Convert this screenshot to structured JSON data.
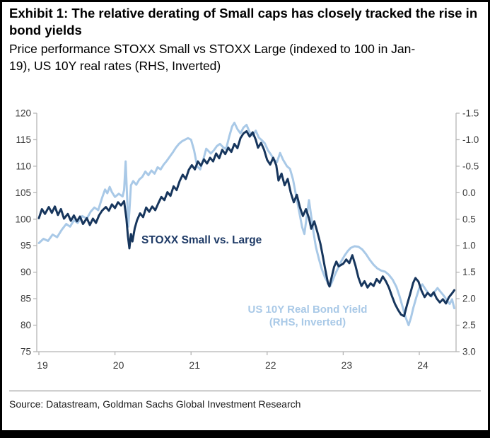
{
  "exhibit": {
    "title": "Exhibit 1: The relative derating of Small caps has closely tracked the rise in bond yields",
    "subtitle": "Price performance STOXX Small vs STOXX Large (indexed to 100 in Jan-19), US 10Y real rates (RHS, Inverted)",
    "source": "Source: Datastream, Goldman Sachs Global Investment Research"
  },
  "chart_data": {
    "type": "line",
    "title": "Exhibit 1: The relative derating of Small caps has closely tracked the rise in bond yields",
    "subtitle": "Price performance STOXX Small vs STOXX Large (indexed to 100 in Jan-19), US 10Y real rates (RHS, Inverted)",
    "grid": false,
    "legend_position": "in-plot-annotations",
    "axis_color": "#b5b5b5",
    "tick_label_color": "#3a3a3a",
    "x_axis": {
      "ticks": [
        19,
        20,
        21,
        22,
        23,
        24
      ],
      "labels": [
        "19",
        "20",
        "21",
        "22",
        "23",
        "24"
      ],
      "range": [
        19,
        24.55
      ]
    },
    "left_axis": {
      "range": [
        75,
        120
      ],
      "ticks": [
        120,
        115,
        110,
        105,
        100,
        95,
        90,
        85,
        80,
        75
      ]
    },
    "right_axis": {
      "range": [
        -1.5,
        3.0
      ],
      "ticks": [
        -1.5,
        -1.0,
        -0.5,
        0.0,
        0.5,
        1.0,
        1.5,
        2.0,
        2.5,
        3.0
      ],
      "inverted": true
    },
    "annotations": [
      {
        "id": "stoxx-label",
        "text": "STOXX Small vs. Large",
        "color": "#1e3a66"
      },
      {
        "id": "yield-label",
        "line1": "US 10Y Real Bond Yield",
        "line2": "(RHS, Inverted)",
        "color": "#a9c9e7"
      }
    ],
    "series": [
      {
        "name": "STOXX Small vs. Large",
        "axis": "left",
        "color": "#17365d",
        "width": 3,
        "points": [
          [
            19.0,
            100.2
          ],
          [
            19.04,
            101.9
          ],
          [
            19.08,
            101.0
          ],
          [
            19.13,
            102.3
          ],
          [
            19.17,
            101.2
          ],
          [
            19.21,
            102.4
          ],
          [
            19.25,
            100.8
          ],
          [
            19.29,
            101.9
          ],
          [
            19.33,
            100.1
          ],
          [
            19.38,
            101.0
          ],
          [
            19.42,
            99.7
          ],
          [
            19.46,
            100.7
          ],
          [
            19.5,
            99.6
          ],
          [
            19.54,
            100.5
          ],
          [
            19.58,
            99.1
          ],
          [
            19.63,
            100.2
          ],
          [
            19.67,
            98.9
          ],
          [
            19.71,
            100.1
          ],
          [
            19.75,
            99.3
          ],
          [
            19.79,
            100.7
          ],
          [
            19.83,
            101.6
          ],
          [
            19.88,
            102.3
          ],
          [
            19.92,
            101.6
          ],
          [
            19.96,
            102.8
          ],
          [
            20.0,
            102.1
          ],
          [
            20.04,
            103.2
          ],
          [
            20.08,
            102.6
          ],
          [
            20.12,
            103.4
          ],
          [
            20.15,
            100.2
          ],
          [
            20.17,
            96.8
          ],
          [
            20.19,
            94.5
          ],
          [
            20.21,
            97.2
          ],
          [
            20.23,
            95.8
          ],
          [
            20.26,
            98.3
          ],
          [
            20.29,
            99.8
          ],
          [
            20.33,
            101.1
          ],
          [
            20.37,
            100.4
          ],
          [
            20.41,
            102.2
          ],
          [
            20.45,
            101.4
          ],
          [
            20.49,
            102.4
          ],
          [
            20.53,
            101.7
          ],
          [
            20.57,
            103.0
          ],
          [
            20.61,
            104.2
          ],
          [
            20.65,
            103.6
          ],
          [
            20.69,
            105.1
          ],
          [
            20.73,
            104.4
          ],
          [
            20.77,
            106.2
          ],
          [
            20.81,
            105.5
          ],
          [
            20.85,
            107.2
          ],
          [
            20.89,
            108.4
          ],
          [
            20.93,
            107.6
          ],
          [
            20.97,
            109.3
          ],
          [
            21.01,
            110.2
          ],
          [
            21.05,
            109.4
          ],
          [
            21.09,
            110.9
          ],
          [
            21.13,
            110.1
          ],
          [
            21.17,
            111.3
          ],
          [
            21.21,
            110.5
          ],
          [
            21.25,
            111.6
          ],
          [
            21.29,
            110.9
          ],
          [
            21.33,
            112.4
          ],
          [
            21.37,
            111.5
          ],
          [
            21.41,
            113.1
          ],
          [
            21.45,
            112.3
          ],
          [
            21.49,
            113.5
          ],
          [
            21.53,
            112.7
          ],
          [
            21.57,
            114.2
          ],
          [
            21.61,
            113.4
          ],
          [
            21.65,
            115.3
          ],
          [
            21.69,
            116.2
          ],
          [
            21.73,
            116.6
          ],
          [
            21.77,
            115.6
          ],
          [
            21.81,
            116.4
          ],
          [
            21.85,
            115.0
          ],
          [
            21.88,
            113.5
          ],
          [
            21.92,
            114.4
          ],
          [
            21.96,
            113.1
          ],
          [
            22.0,
            111.2
          ],
          [
            22.04,
            110.3
          ],
          [
            22.08,
            111.6
          ],
          [
            22.12,
            110.2
          ],
          [
            22.15,
            107.3
          ],
          [
            22.19,
            108.6
          ],
          [
            22.23,
            106.4
          ],
          [
            22.27,
            107.6
          ],
          [
            22.31,
            105.0
          ],
          [
            22.35,
            103.2
          ],
          [
            22.39,
            104.6
          ],
          [
            22.43,
            102.3
          ],
          [
            22.47,
            100.6
          ],
          [
            22.51,
            101.9
          ],
          [
            22.55,
            100.2
          ],
          [
            22.58,
            98.2
          ],
          [
            22.62,
            99.6
          ],
          [
            22.66,
            97.6
          ],
          [
            22.7,
            95.4
          ],
          [
            22.73,
            93.2
          ],
          [
            22.76,
            90.8
          ],
          [
            22.8,
            87.9
          ],
          [
            22.82,
            87.3
          ],
          [
            22.85,
            89.2
          ],
          [
            22.88,
            91.0
          ],
          [
            22.91,
            92.0
          ],
          [
            22.94,
            91.1
          ],
          [
            23.0,
            91.6
          ],
          [
            23.04,
            92.4
          ],
          [
            23.08,
            91.7
          ],
          [
            23.12,
            93.2
          ],
          [
            23.16,
            91.3
          ],
          [
            23.2,
            89.0
          ],
          [
            23.24,
            87.4
          ],
          [
            23.28,
            88.3
          ],
          [
            23.32,
            87.1
          ],
          [
            23.36,
            87.9
          ],
          [
            23.4,
            87.4
          ],
          [
            23.44,
            88.7
          ],
          [
            23.48,
            88.0
          ],
          [
            23.52,
            89.2
          ],
          [
            23.56,
            88.3
          ],
          [
            23.6,
            87.1
          ],
          [
            23.64,
            85.5
          ],
          [
            23.68,
            84.0
          ],
          [
            23.72,
            82.9
          ],
          [
            23.76,
            82.0
          ],
          [
            23.8,
            81.7
          ],
          [
            23.84,
            83.9
          ],
          [
            23.88,
            85.9
          ],
          [
            23.92,
            88.0
          ],
          [
            23.95,
            88.9
          ],
          [
            23.99,
            88.2
          ],
          [
            24.03,
            86.5
          ],
          [
            24.07,
            85.3
          ],
          [
            24.11,
            86.1
          ],
          [
            24.15,
            85.5
          ],
          [
            24.19,
            86.2
          ],
          [
            24.23,
            85.0
          ],
          [
            24.27,
            84.3
          ],
          [
            24.31,
            84.9
          ],
          [
            24.35,
            84.1
          ],
          [
            24.39,
            85.3
          ],
          [
            24.43,
            86.0
          ],
          [
            24.46,
            86.6
          ]
        ]
      },
      {
        "name": "US 10Y Real Bond Yield (RHS, Inverted)",
        "axis": "right",
        "color": "#a9c9e7",
        "width": 3,
        "points": [
          [
            19.0,
            0.95
          ],
          [
            19.06,
            0.87
          ],
          [
            19.12,
            0.91
          ],
          [
            19.18,
            0.79
          ],
          [
            19.24,
            0.84
          ],
          [
            19.3,
            0.7
          ],
          [
            19.36,
            0.59
          ],
          [
            19.41,
            0.64
          ],
          [
            19.46,
            0.52
          ],
          [
            19.51,
            0.57
          ],
          [
            19.57,
            0.44
          ],
          [
            19.63,
            0.49
          ],
          [
            19.68,
            0.36
          ],
          [
            19.73,
            0.28
          ],
          [
            19.78,
            0.33
          ],
          [
            19.83,
            0.1
          ],
          [
            19.87,
            -0.06
          ],
          [
            19.9,
            0.01
          ],
          [
            19.93,
            -0.11
          ],
          [
            19.96,
            -0.01
          ],
          [
            20.0,
            0.08
          ],
          [
            20.05,
            0.02
          ],
          [
            20.1,
            0.07
          ],
          [
            20.12,
            -0.05
          ],
          [
            20.14,
            -0.59
          ],
          [
            20.16,
            0.1
          ],
          [
            20.175,
            0.64
          ],
          [
            20.19,
            0.35
          ],
          [
            20.21,
            -0.14
          ],
          [
            20.24,
            -0.22
          ],
          [
            20.28,
            -0.15
          ],
          [
            20.32,
            -0.25
          ],
          [
            20.36,
            -0.3
          ],
          [
            20.4,
            -0.4
          ],
          [
            20.44,
            -0.33
          ],
          [
            20.48,
            -0.42
          ],
          [
            20.52,
            -0.36
          ],
          [
            20.56,
            -0.48
          ],
          [
            20.6,
            -0.44
          ],
          [
            20.64,
            -0.53
          ],
          [
            20.68,
            -0.6
          ],
          [
            20.72,
            -0.68
          ],
          [
            20.76,
            -0.76
          ],
          [
            20.8,
            -0.85
          ],
          [
            20.84,
            -0.92
          ],
          [
            20.88,
            -0.97
          ],
          [
            20.92,
            -1.0
          ],
          [
            20.96,
            -1.03
          ],
          [
            21.0,
            -1.0
          ],
          [
            21.04,
            -0.8
          ],
          [
            21.08,
            -0.5
          ],
          [
            21.12,
            -0.44
          ],
          [
            21.16,
            -0.62
          ],
          [
            21.2,
            -0.83
          ],
          [
            21.26,
            -0.74
          ],
          [
            21.3,
            -0.8
          ],
          [
            21.34,
            -0.88
          ],
          [
            21.38,
            -0.92
          ],
          [
            21.42,
            -0.86
          ],
          [
            21.46,
            -0.82
          ],
          [
            21.5,
            -1.05
          ],
          [
            21.54,
            -1.25
          ],
          [
            21.57,
            -1.32
          ],
          [
            21.61,
            -1.2
          ],
          [
            21.65,
            -1.12
          ],
          [
            21.69,
            -1.23
          ],
          [
            21.73,
            -1.28
          ],
          [
            21.77,
            -1.14
          ],
          [
            21.81,
            -1.08
          ],
          [
            21.85,
            -1.17
          ],
          [
            21.89,
            -1.04
          ],
          [
            21.93,
            -0.99
          ],
          [
            21.97,
            -0.93
          ],
          [
            22.01,
            -0.8
          ],
          [
            22.05,
            -0.72
          ],
          [
            22.09,
            -0.62
          ],
          [
            22.13,
            -0.58
          ],
          [
            22.17,
            -0.75
          ],
          [
            22.21,
            -0.62
          ],
          [
            22.26,
            -0.5
          ],
          [
            22.3,
            -0.45
          ],
          [
            22.34,
            -0.25
          ],
          [
            22.38,
            0.05
          ],
          [
            22.42,
            0.35
          ],
          [
            22.46,
            0.65
          ],
          [
            22.49,
            0.78
          ],
          [
            22.52,
            0.45
          ],
          [
            22.55,
            0.14
          ],
          [
            22.58,
            0.45
          ],
          [
            22.61,
            0.75
          ],
          [
            22.64,
            1.02
          ],
          [
            22.68,
            1.25
          ],
          [
            22.72,
            1.45
          ],
          [
            22.76,
            1.6
          ],
          [
            22.8,
            1.7
          ],
          [
            22.83,
            1.76
          ],
          [
            22.86,
            1.66
          ],
          [
            22.9,
            1.52
          ],
          [
            22.94,
            1.4
          ],
          [
            22.98,
            1.28
          ],
          [
            23.02,
            1.18
          ],
          [
            23.06,
            1.1
          ],
          [
            23.1,
            1.04
          ],
          [
            23.15,
            1.01
          ],
          [
            23.2,
            1.02
          ],
          [
            23.25,
            1.07
          ],
          [
            23.3,
            1.16
          ],
          [
            23.35,
            1.27
          ],
          [
            23.4,
            1.36
          ],
          [
            23.45,
            1.43
          ],
          [
            23.5,
            1.47
          ],
          [
            23.55,
            1.49
          ],
          [
            23.6,
            1.55
          ],
          [
            23.65,
            1.64
          ],
          [
            23.7,
            1.78
          ],
          [
            23.74,
            1.95
          ],
          [
            23.78,
            2.15
          ],
          [
            23.82,
            2.35
          ],
          [
            23.86,
            2.5
          ],
          [
            23.89,
            2.36
          ],
          [
            23.92,
            2.18
          ],
          [
            23.96,
            1.98
          ],
          [
            24.0,
            1.8
          ],
          [
            24.04,
            1.73
          ],
          [
            24.08,
            1.82
          ],
          [
            24.12,
            1.9
          ],
          [
            24.16,
            1.96
          ],
          [
            24.2,
            1.87
          ],
          [
            24.24,
            1.8
          ],
          [
            24.28,
            1.87
          ],
          [
            24.32,
            1.94
          ],
          [
            24.36,
            2.02
          ],
          [
            24.4,
            2.1
          ],
          [
            24.43,
            2.01
          ],
          [
            24.46,
            2.18
          ]
        ]
      }
    ]
  }
}
